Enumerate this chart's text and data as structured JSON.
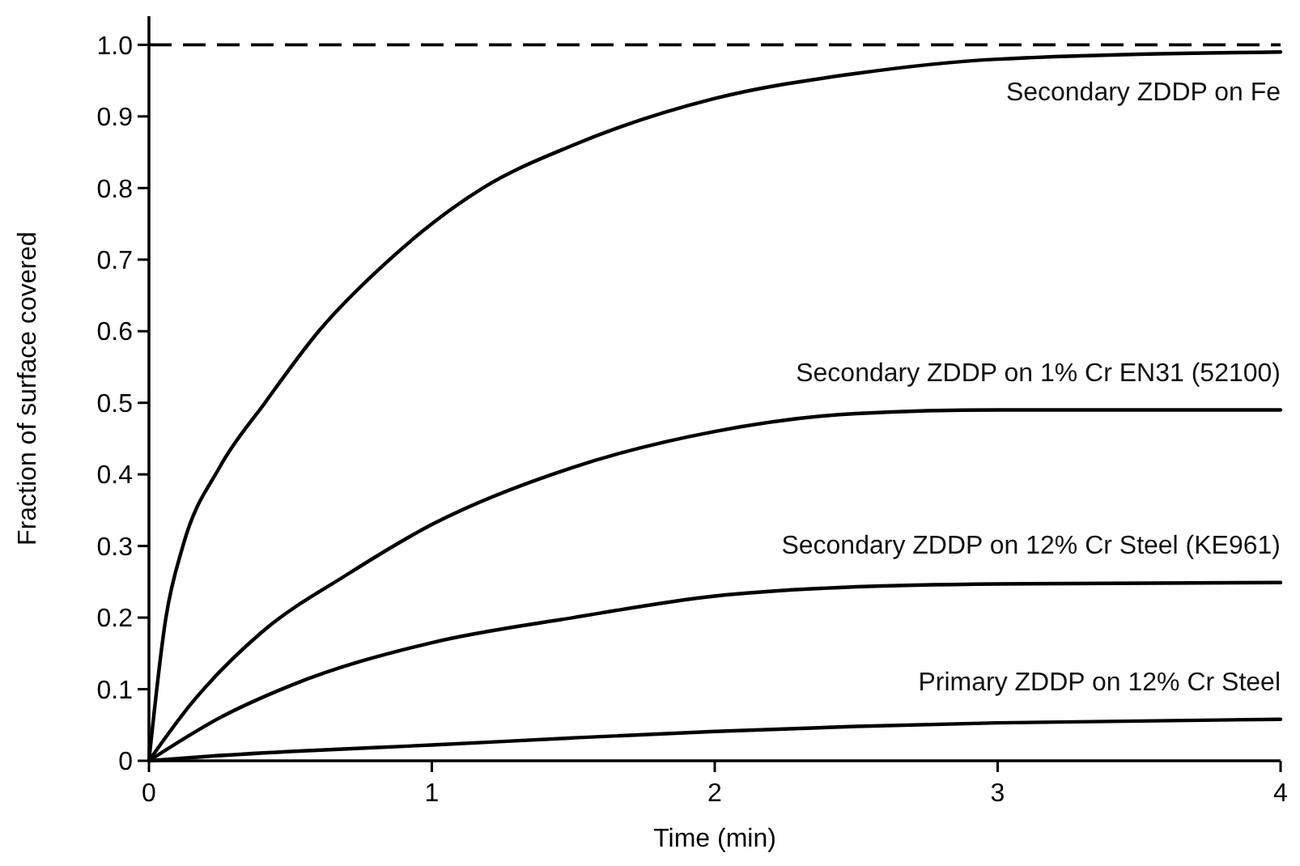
{
  "chart_data": {
    "type": "line",
    "xlabel": "Time (min)",
    "ylabel": "Fraction of surface covered",
    "xlim": [
      0,
      4
    ],
    "ylim": [
      0,
      1.04
    ],
    "xticks": [
      0,
      1,
      2,
      3,
      4
    ],
    "yticks": [
      0,
      0.1,
      0.2,
      0.3,
      0.4,
      0.5,
      0.6,
      0.7,
      0.8,
      0.9,
      {
        "value": 1,
        "label": "1.0"
      }
    ],
    "grid": false,
    "legend": false,
    "marker": "none",
    "line_style": "solid",
    "ref_lines": [
      {
        "axis": "y",
        "value": 1,
        "color": "#000000",
        "line_style": "dashed"
      }
    ],
    "series": [
      {
        "name": "Secondary ZDDP on Fe",
        "color": "#000000",
        "x": [
          0,
          0.06,
          0.12,
          0.25,
          0.41,
          0.6,
          0.85,
          1.18,
          1.5,
          2,
          2.5,
          3,
          4
        ],
        "values": [
          0,
          0.2,
          0.3,
          0.41,
          0.5,
          0.6,
          0.7,
          0.8,
          0.86,
          0.925,
          0.96,
          0.98,
          0.99
        ]
      },
      {
        "name": "Secondary ZDDP on 1% Cr EN31 (52100)",
        "color": "#000000",
        "x": [
          0,
          0.15,
          0.4,
          0.7,
          1,
          1.5,
          2,
          2.5,
          3,
          4
        ],
        "values": [
          0,
          0.08,
          0.18,
          0.26,
          0.33,
          0.41,
          0.46,
          0.485,
          0.49,
          0.49
        ]
      },
      {
        "name": "Secondary ZDDP on 12% Cr Steel (KE961)",
        "color": "#000000",
        "x": [
          0,
          0.25,
          0.5,
          1,
          1.5,
          2,
          2.5,
          3,
          4
        ],
        "values": [
          0,
          0.06,
          0.105,
          0.165,
          0.2,
          0.23,
          0.243,
          0.247,
          0.249
        ]
      },
      {
        "name": "Primary ZDDP on 12% Cr Steel",
        "color": "#000000",
        "x": [
          0,
          0.2,
          0.5,
          1,
          1.5,
          2,
          2.5,
          3,
          4
        ],
        "values": [
          0,
          0.006,
          0.013,
          0.022,
          0.032,
          0.041,
          0.048,
          0.053,
          0.058
        ]
      }
    ]
  }
}
